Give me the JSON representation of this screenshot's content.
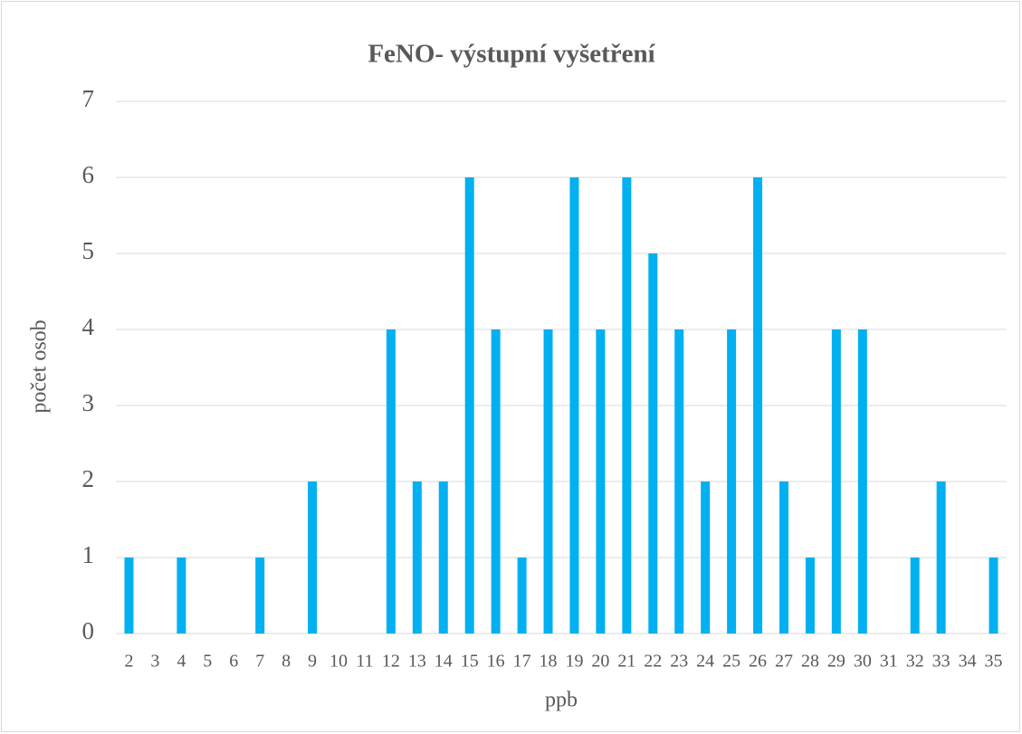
{
  "chart_data": {
    "type": "bar",
    "title": "FeNO- výstupní vyšetření",
    "x_label": "ppb",
    "y_label": "počet osob",
    "categories": [
      "2",
      "3",
      "4",
      "5",
      "6",
      "7",
      "8",
      "9",
      "10",
      "11",
      "12",
      "13",
      "14",
      "15",
      "16",
      "17",
      "18",
      "19",
      "20",
      "21",
      "22",
      "23",
      "24",
      "25",
      "26",
      "27",
      "28",
      "29",
      "30",
      "31",
      "32",
      "33",
      "34",
      "35"
    ],
    "values": [
      1,
      0,
      1,
      0,
      0,
      1,
      0,
      2,
      0,
      0,
      4,
      2,
      2,
      6,
      4,
      1,
      4,
      6,
      4,
      6,
      5,
      4,
      2,
      4,
      6,
      2,
      1,
      4,
      4,
      0,
      1,
      2,
      0,
      1
    ],
    "color": "#00b0f0",
    "ylim": [
      0,
      7
    ],
    "yticks": [
      0,
      1,
      2,
      3,
      4,
      5,
      6,
      7
    ],
    "grid": true
  }
}
